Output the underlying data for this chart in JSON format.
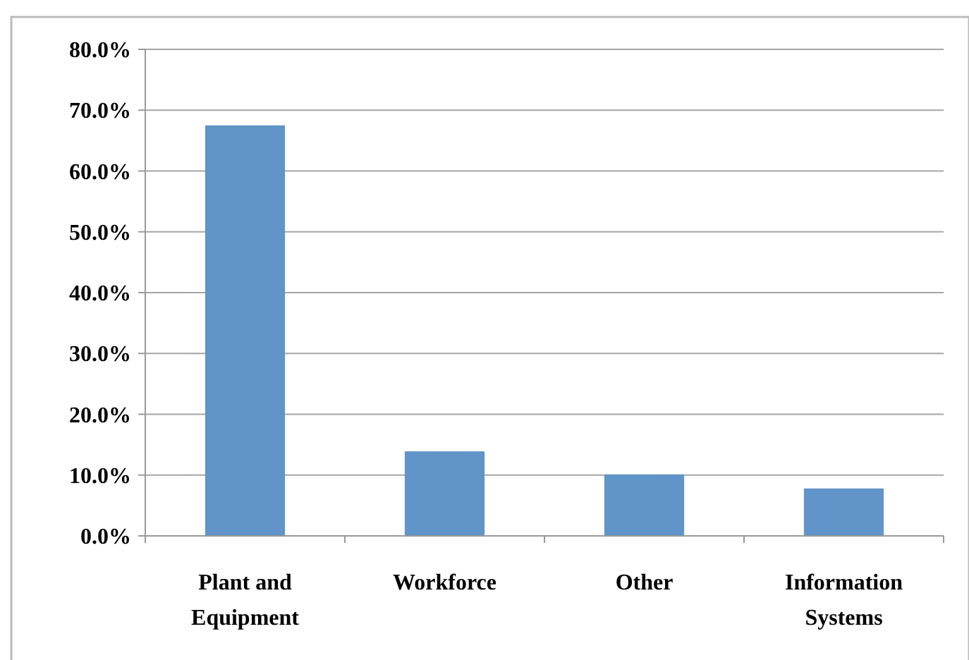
{
  "chart_data": {
    "type": "bar",
    "categories": [
      "Plant and Equipment",
      "Workforce",
      "Other",
      "Information Systems"
    ],
    "values": [
      67.5,
      13.9,
      10.1,
      7.8
    ],
    "color": "#6194c8",
    "ylim": [
      0,
      80
    ],
    "yticks": [
      {
        "value": 0,
        "label": "0.0%"
      },
      {
        "value": 10,
        "label": "10.0%"
      },
      {
        "value": 20,
        "label": "20.0%"
      },
      {
        "value": 30,
        "label": "30.0%"
      },
      {
        "value": 40,
        "label": "40.0%"
      },
      {
        "value": 50,
        "label": "50.0%"
      },
      {
        "value": 60,
        "label": "60.0%"
      },
      {
        "value": 70,
        "label": "70.0%"
      },
      {
        "value": 80,
        "label": "80.0%"
      }
    ],
    "grid": "y"
  }
}
